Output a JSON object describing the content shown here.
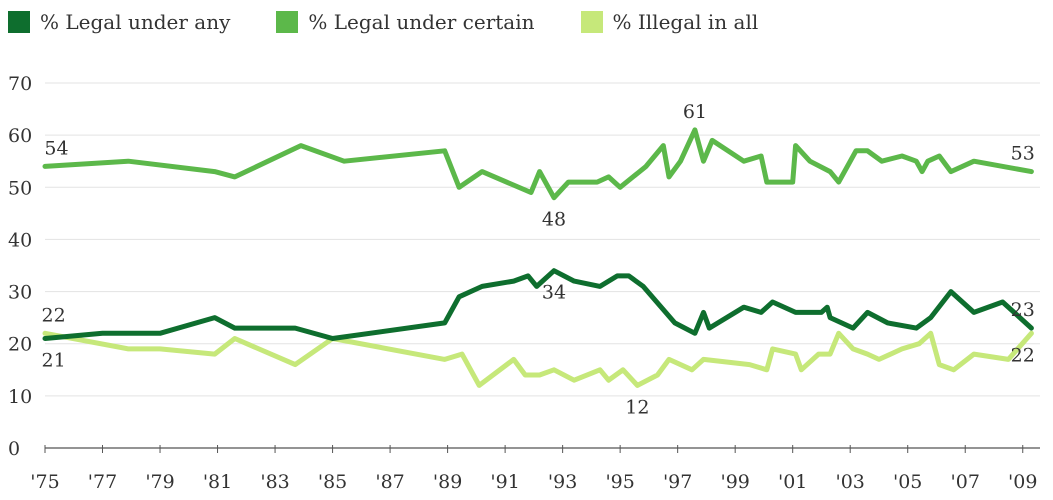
{
  "chart_data": {
    "type": "line",
    "ylim": [
      0,
      70
    ],
    "yticks": [
      "0",
      "10",
      "20",
      "30",
      "40",
      "50",
      "60",
      "70"
    ],
    "xlim": [
      1975,
      2009.6
    ],
    "xticks": [
      {
        "year": 1975,
        "label": "'75"
      },
      {
        "year": 1977,
        "label": "'77"
      },
      {
        "year": 1979,
        "label": "'79"
      },
      {
        "year": 1981,
        "label": "'81"
      },
      {
        "year": 1983,
        "label": "'83"
      },
      {
        "year": 1985,
        "label": "'85"
      },
      {
        "year": 1987,
        "label": "'87"
      },
      {
        "year": 1989,
        "label": "'89"
      },
      {
        "year": 1991,
        "label": "'91"
      },
      {
        "year": 1993,
        "label": "'93"
      },
      {
        "year": 1995,
        "label": "'95"
      },
      {
        "year": 1997,
        "label": "'97"
      },
      {
        "year": 1999,
        "label": "'99"
      },
      {
        "year": 2001,
        "label": "'01"
      },
      {
        "year": 2003,
        "label": "'03"
      },
      {
        "year": 2005,
        "label": "'05"
      },
      {
        "year": 2007,
        "label": "'07"
      },
      {
        "year": 2009,
        "label": "'09"
      }
    ],
    "grid": true,
    "legend_position": "top-left",
    "series": [
      {
        "name": "% Legal under any",
        "color": "#0e6e2e",
        "points": [
          [
            1975,
            21
          ],
          [
            1977,
            22
          ],
          [
            1979,
            22
          ],
          [
            1980.9,
            25
          ],
          [
            1981.6,
            23
          ],
          [
            1983.7,
            23
          ],
          [
            1985,
            21
          ],
          [
            1988.9,
            24
          ],
          [
            1989.4,
            29
          ],
          [
            1990.2,
            31
          ],
          [
            1991.3,
            32
          ],
          [
            1991.8,
            33
          ],
          [
            1992.1,
            31
          ],
          [
            1992.7,
            34
          ],
          [
            1993.4,
            32
          ],
          [
            1994.3,
            31
          ],
          [
            1994.9,
            33
          ],
          [
            1995.3,
            33
          ],
          [
            1995.8,
            31
          ],
          [
            1996.9,
            24
          ],
          [
            1997.6,
            22
          ],
          [
            1997.9,
            26
          ],
          [
            1998.1,
            23
          ],
          [
            1999.3,
            27
          ],
          [
            1999.9,
            26
          ],
          [
            2000.3,
            28
          ],
          [
            2001.1,
            26
          ],
          [
            2002.0,
            26
          ],
          [
            2002.2,
            27
          ],
          [
            2002.3,
            25
          ],
          [
            2003.1,
            23
          ],
          [
            2003.6,
            26
          ],
          [
            2004.3,
            24
          ],
          [
            2005.3,
            23
          ],
          [
            2005.8,
            25
          ],
          [
            2006.5,
            30
          ],
          [
            2007.3,
            26
          ],
          [
            2008.3,
            28
          ],
          [
            2009.3,
            23
          ]
        ]
      },
      {
        "name": "% Legal under certain",
        "color": "#5cb84a",
        "points": [
          [
            1975,
            54
          ],
          [
            1977.9,
            55
          ],
          [
            1980.9,
            53
          ],
          [
            1981.6,
            52
          ],
          [
            1983.9,
            58
          ],
          [
            1985.4,
            55
          ],
          [
            1988.9,
            57
          ],
          [
            1989.4,
            50
          ],
          [
            1990.2,
            53
          ],
          [
            1991.9,
            49
          ],
          [
            1992.2,
            53
          ],
          [
            1992.7,
            48
          ],
          [
            1993.2,
            51
          ],
          [
            1994.2,
            51
          ],
          [
            1994.6,
            52
          ],
          [
            1995.0,
            50
          ],
          [
            1995.9,
            54
          ],
          [
            1996.5,
            58
          ],
          [
            1996.7,
            52
          ],
          [
            1997.1,
            55
          ],
          [
            1997.6,
            61
          ],
          [
            1997.9,
            55
          ],
          [
            1998.2,
            59
          ],
          [
            1999.3,
            55
          ],
          [
            1999.9,
            56
          ],
          [
            2000.1,
            51
          ],
          [
            2001.0,
            51
          ],
          [
            2001.1,
            58
          ],
          [
            2001.6,
            55
          ],
          [
            2002.3,
            53
          ],
          [
            2002.6,
            51
          ],
          [
            2003.2,
            57
          ],
          [
            2003.6,
            57
          ],
          [
            2004.1,
            55
          ],
          [
            2004.8,
            56
          ],
          [
            2005.3,
            55
          ],
          [
            2005.5,
            53
          ],
          [
            2005.7,
            55
          ],
          [
            2006.1,
            56
          ],
          [
            2006.5,
            53
          ],
          [
            2007.3,
            55
          ],
          [
            2009.3,
            53
          ]
        ]
      },
      {
        "name": "% Illegal in all",
        "color": "#c6e87a",
        "points": [
          [
            1975,
            22
          ],
          [
            1977.9,
            19
          ],
          [
            1979,
            19
          ],
          [
            1980.9,
            18
          ],
          [
            1981.6,
            21
          ],
          [
            1983.7,
            16
          ],
          [
            1985.0,
            21
          ],
          [
            1988.9,
            17
          ],
          [
            1989.5,
            18
          ],
          [
            1990.1,
            12
          ],
          [
            1991.3,
            17
          ],
          [
            1991.7,
            14
          ],
          [
            1992.2,
            14
          ],
          [
            1992.7,
            15
          ],
          [
            1993.4,
            13
          ],
          [
            1994.3,
            15
          ],
          [
            1994.6,
            13
          ],
          [
            1995.1,
            15
          ],
          [
            1995.6,
            12
          ],
          [
            1996.3,
            14
          ],
          [
            1996.7,
            17
          ],
          [
            1997.5,
            15
          ],
          [
            1997.9,
            17
          ],
          [
            1999.5,
            16
          ],
          [
            2000.1,
            15
          ],
          [
            2000.3,
            19
          ],
          [
            2001.1,
            18
          ],
          [
            2001.3,
            15
          ],
          [
            2001.9,
            18
          ],
          [
            2002.3,
            18
          ],
          [
            2002.6,
            22
          ],
          [
            2003.1,
            19
          ],
          [
            2003.6,
            18
          ],
          [
            2004.0,
            17
          ],
          [
            2004.8,
            19
          ],
          [
            2005.4,
            20
          ],
          [
            2005.8,
            22
          ],
          [
            2006.1,
            16
          ],
          [
            2006.6,
            15
          ],
          [
            2007.3,
            18
          ],
          [
            2008.5,
            17
          ],
          [
            2009.3,
            22
          ]
        ]
      }
    ],
    "annotations": [
      {
        "text": "54",
        "year": 1975.4,
        "value": 54,
        "offset": "above"
      },
      {
        "text": "22",
        "year": 1975.3,
        "value": 22,
        "offset": "above"
      },
      {
        "text": "21",
        "year": 1975.3,
        "value": 21,
        "offset": "below"
      },
      {
        "text": "61",
        "year": 1997.6,
        "value": 61,
        "offset": "above"
      },
      {
        "text": "48",
        "year": 1992.7,
        "value": 48,
        "offset": "below"
      },
      {
        "text": "34",
        "year": 1992.7,
        "value": 34,
        "offset": "below"
      },
      {
        "text": "12",
        "year": 1995.6,
        "value": 12,
        "offset": "below"
      },
      {
        "text": "53",
        "year": 2009.0,
        "value": 53,
        "offset": "above"
      },
      {
        "text": "23",
        "year": 2009.0,
        "value": 23,
        "offset": "above"
      },
      {
        "text": "22",
        "year": 2009.0,
        "value": 22,
        "offset": "below"
      }
    ]
  }
}
